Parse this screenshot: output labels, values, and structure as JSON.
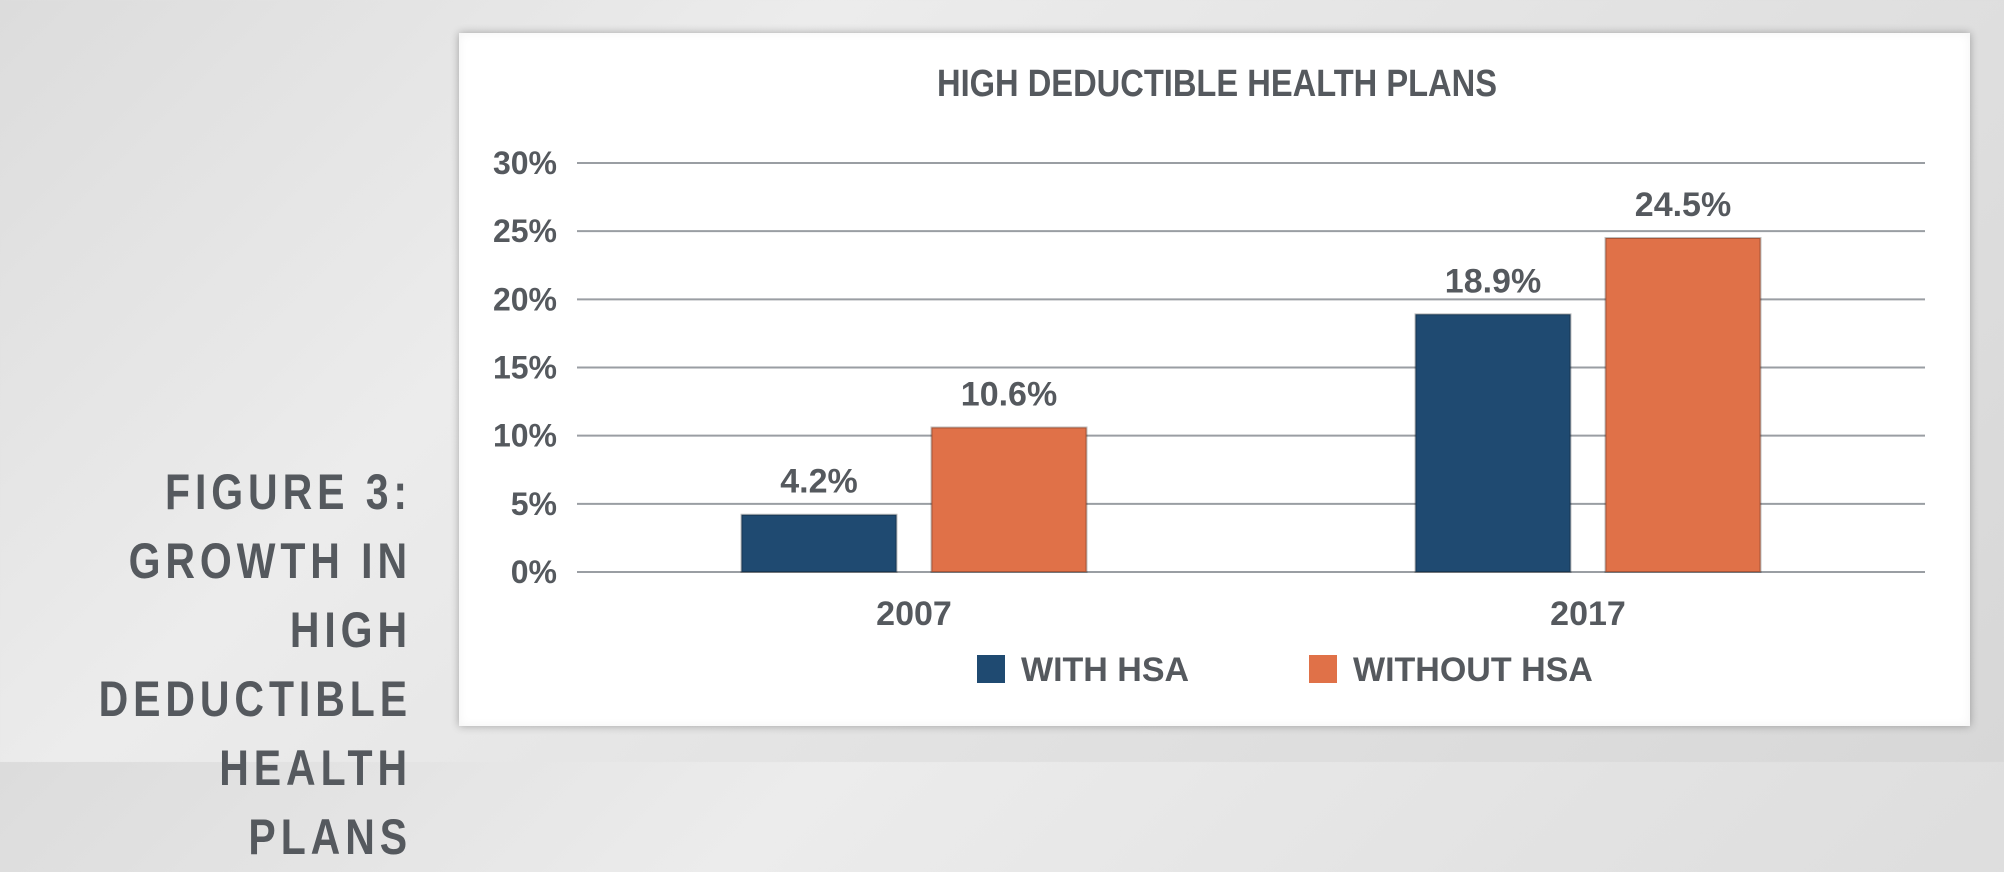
{
  "figure_caption": {
    "line1": "FIGURE 3:",
    "line2": "GROWTH IN HIGH",
    "line3": "DEDUCTIBLE",
    "line4": "HEALTH PLANS"
  },
  "chart_data": {
    "type": "bar",
    "title": "HIGH DEDUCTIBLE HEALTH PLANS",
    "categories": [
      "2007",
      "2017"
    ],
    "series": [
      {
        "name": "WITH HSA",
        "values": [
          4.2,
          18.9
        ],
        "labels": [
          "4.2%",
          "18.9%"
        ],
        "color": "#1f4a71"
      },
      {
        "name": "WITHOUT HSA",
        "values": [
          10.6,
          24.5
        ],
        "labels": [
          "10.6%",
          "24.5%"
        ],
        "color": "#e07148"
      }
    ],
    "ylim": [
      0,
      30
    ],
    "yticks": [
      0,
      5,
      10,
      15,
      20,
      25,
      30
    ],
    "ytick_labels": [
      "0%",
      "5%",
      "10%",
      "15%",
      "20%",
      "25%",
      "30%"
    ],
    "grid": true,
    "legend_position": "bottom"
  }
}
